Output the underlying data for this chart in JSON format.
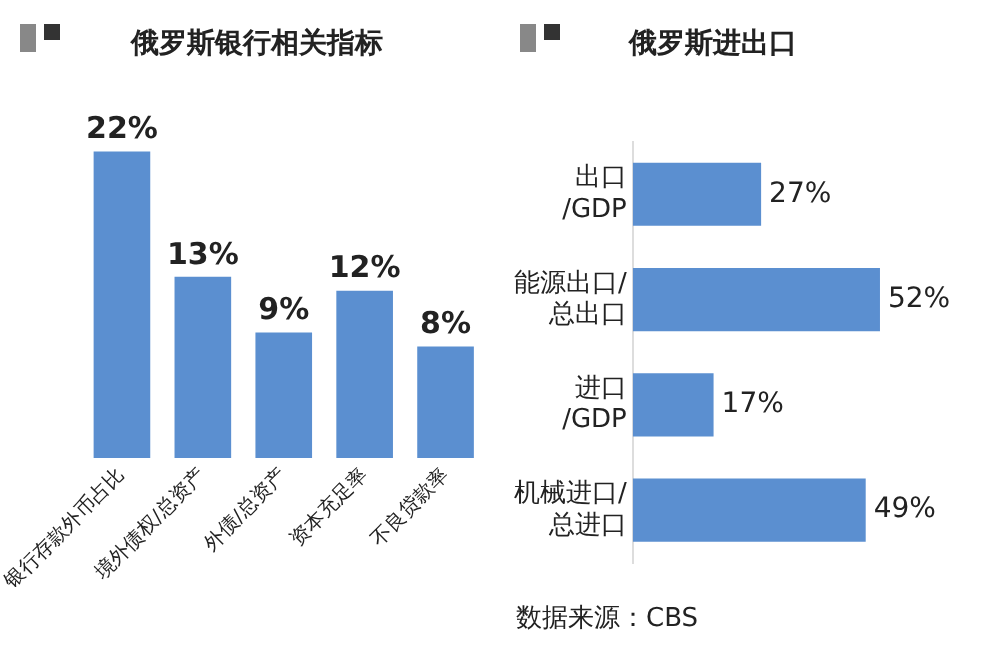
{
  "chart_data": [
    {
      "type": "bar",
      "title": "俄罗斯银行相关指标",
      "categories": [
        "银行存款外币占比",
        "境外债权/总资产",
        "外债/总资产",
        "资本充足率",
        "不良贷款率"
      ],
      "values": [
        22,
        13,
        9,
        12,
        8
      ],
      "value_labels": [
        "22%",
        "13%",
        "9%",
        "12%",
        "8%"
      ],
      "color": "#5b8fd0",
      "grid": false,
      "legend": false,
      "tick_labels": "x"
    },
    {
      "type": "bar",
      "orientation": "horizontal",
      "title": "俄罗斯进出口",
      "categories": [
        "出口\n/GDP",
        "能源出口/\n总出口",
        "进口\n/GDP",
        "机械进口/\n总进口"
      ],
      "values": [
        27,
        52,
        17,
        49
      ],
      "value_labels": [
        "27%",
        "52%",
        "17%",
        "49%"
      ],
      "color": "#5b8fd0",
      "grid": false,
      "legend": false,
      "tick_labels": "y",
      "annotations": [
        "数据来源：CBS"
      ]
    }
  ]
}
